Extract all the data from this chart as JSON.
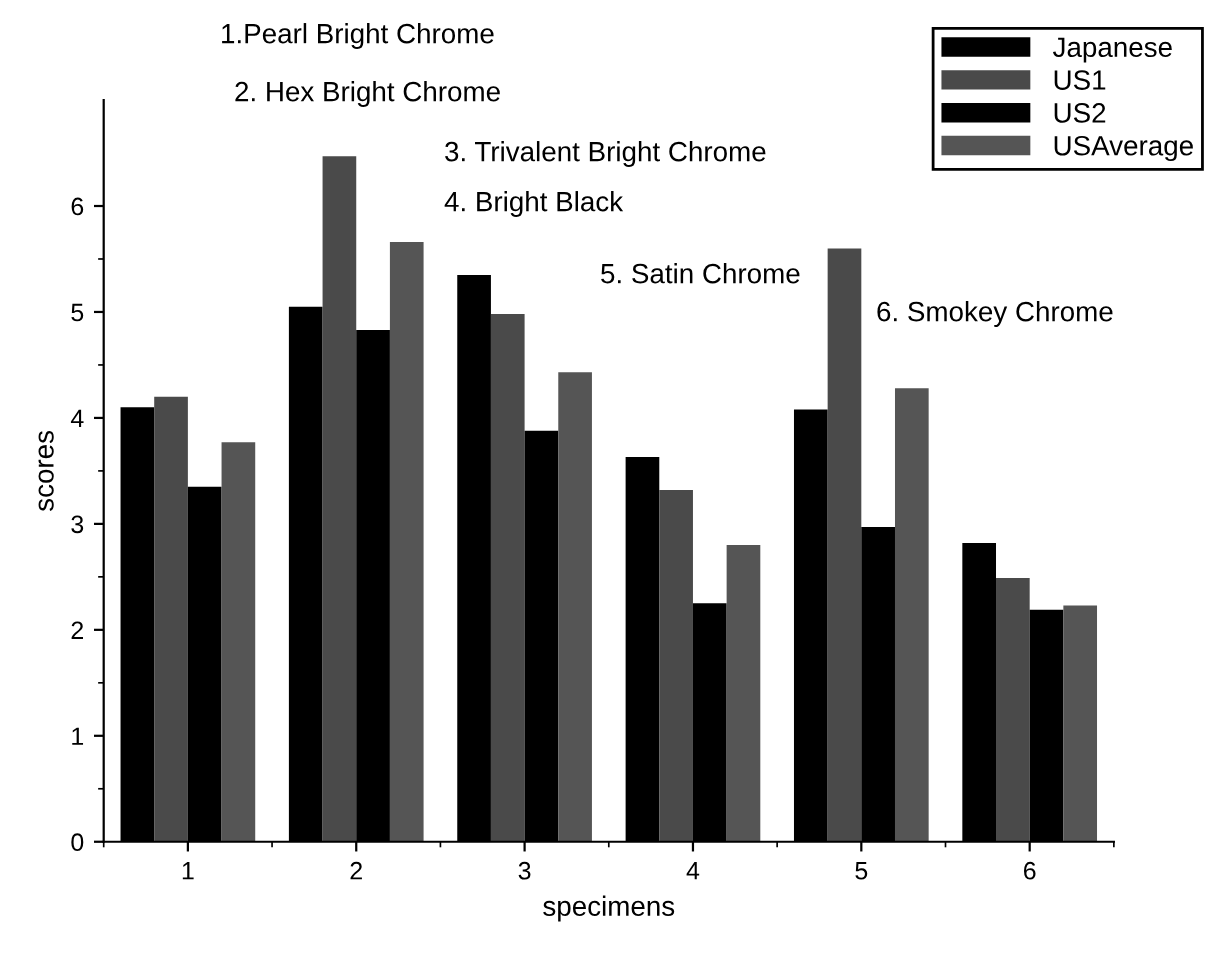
{
  "chart_data": {
    "type": "bar",
    "xlabel": "specimens",
    "ylabel": "scores",
    "categories": [
      "1",
      "2",
      "3",
      "4",
      "5",
      "6"
    ],
    "series": [
      {
        "name": "Japanese",
        "color": "#000000",
        "values": [
          4.1,
          5.05,
          5.35,
          3.63,
          4.08,
          2.82
        ]
      },
      {
        "name": "US1",
        "color": "#4a4a4a",
        "values": [
          4.2,
          6.47,
          4.98,
          3.32,
          5.6,
          2.49
        ]
      },
      {
        "name": "US2",
        "color": "#000000",
        "values": [
          3.35,
          4.83,
          3.88,
          2.25,
          2.97,
          2.19
        ]
      },
      {
        "name": "USAverage",
        "color": "#555555",
        "values": [
          3.77,
          5.66,
          4.43,
          2.8,
          4.28,
          2.23
        ]
      }
    ],
    "ylim": [
      0,
      7
    ],
    "yticks": [
      0,
      1,
      2,
      3,
      4,
      5,
      6
    ],
    "annotations": [
      "1.Pearl Bright Chrome",
      "2. Hex Bright Chrome",
      "3. Trivalent Bright Chrome",
      "4. Bright Black",
      "5. Satin Chrome",
      "6. Smokey Chrome"
    ],
    "legend": "top right",
    "grid": false
  }
}
